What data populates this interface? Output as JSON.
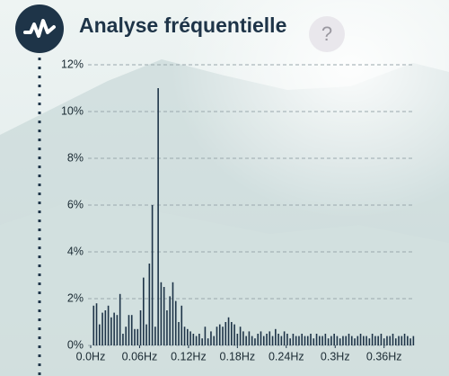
{
  "ui": {
    "help": "?"
  },
  "chart_data": {
    "type": "bar",
    "title": "Analyse fréquentielle",
    "color": "#1e3448",
    "grid": true,
    "x": [
      0.0036,
      0.0072,
      0.0108,
      0.0144,
      0.018,
      0.0216,
      0.0252,
      0.0288,
      0.0324,
      0.036,
      0.0396,
      0.0432,
      0.0468,
      0.0504,
      0.054,
      0.0576,
      0.0612,
      0.0648,
      0.0684,
      0.072,
      0.0756,
      0.0792,
      0.0828,
      0.0864,
      0.09,
      0.0936,
      0.0972,
      0.1008,
      0.1044,
      0.108,
      0.1116,
      0.1152,
      0.1188,
      0.1224,
      0.126,
      0.1296,
      0.1332,
      0.1368,
      0.1404,
      0.144,
      0.1476,
      0.1512,
      0.1548,
      0.1584,
      0.162,
      0.1656,
      0.1692,
      0.1728,
      0.1764,
      0.18,
      0.1836,
      0.1872,
      0.1908,
      0.1944,
      0.198,
      0.2016,
      0.2052,
      0.2088,
      0.2124,
      0.216,
      0.2196,
      0.2232,
      0.2268,
      0.2304,
      0.234,
      0.2376,
      0.2412,
      0.2448,
      0.2484,
      0.252,
      0.2556,
      0.2592,
      0.2628,
      0.2664,
      0.27,
      0.2736,
      0.2772,
      0.2808,
      0.2844,
      0.288,
      0.2916,
      0.2952,
      0.2988,
      0.3024,
      0.306,
      0.3096,
      0.3132,
      0.3168,
      0.3204,
      0.324,
      0.3276,
      0.3312,
      0.3348,
      0.3384,
      0.342,
      0.3456,
      0.3492,
      0.3528,
      0.3564,
      0.36,
      0.3636,
      0.3672,
      0.3708,
      0.3744,
      0.378,
      0.3816,
      0.3852,
      0.3888,
      0.3924,
      0.396
    ],
    "values": [
      1.7,
      1.8,
      0.9,
      1.4,
      1.5,
      1.7,
      1.2,
      1.4,
      1.3,
      2.2,
      0.5,
      0.8,
      1.3,
      1.3,
      0.7,
      0.7,
      1.5,
      2.9,
      0.9,
      3.5,
      6.0,
      0.8,
      11.0,
      2.7,
      2.5,
      1.5,
      2.1,
      2.7,
      1.9,
      1.0,
      1.7,
      0.8,
      0.7,
      0.6,
      0.5,
      0.4,
      0.5,
      0.3,
      0.8,
      0.3,
      0.6,
      0.4,
      0.8,
      0.9,
      0.8,
      1.0,
      1.2,
      1.0,
      0.9,
      0.5,
      0.8,
      0.6,
      0.4,
      0.6,
      0.4,
      0.3,
      0.5,
      0.6,
      0.4,
      0.5,
      0.6,
      0.4,
      0.7,
      0.5,
      0.4,
      0.6,
      0.5,
      0.3,
      0.5,
      0.4,
      0.4,
      0.5,
      0.4,
      0.4,
      0.5,
      0.3,
      0.5,
      0.4,
      0.4,
      0.5,
      0.3,
      0.4,
      0.5,
      0.4,
      0.3,
      0.4,
      0.4,
      0.5,
      0.4,
      0.3,
      0.4,
      0.5,
      0.4,
      0.4,
      0.3,
      0.5,
      0.4,
      0.4,
      0.5,
      0.3,
      0.4,
      0.4,
      0.5,
      0.3,
      0.4,
      0.4,
      0.5,
      0.4,
      0.3,
      0.4
    ],
    "xlim": [
      0,
      0.4
    ],
    "xticks": [
      {
        "value": 0,
        "label": "0.0Hz"
      },
      {
        "value": 0.06,
        "label": "0.06Hz"
      },
      {
        "value": 0.12,
        "label": "0.12Hz"
      },
      {
        "value": 0.18,
        "label": "0.18Hz"
      },
      {
        "value": 0.24,
        "label": "0.24Hz"
      },
      {
        "value": 0.3,
        "label": "0.3Hz"
      },
      {
        "value": 0.36,
        "label": "0.36Hz"
      }
    ],
    "ylim": [
      0,
      12
    ],
    "yticks": [
      {
        "value": 0,
        "label": "0%"
      },
      {
        "value": 2,
        "label": "2%"
      },
      {
        "value": 4,
        "label": "4%"
      },
      {
        "value": 6,
        "label": "6%"
      },
      {
        "value": 8,
        "label": "8%"
      },
      {
        "value": 10,
        "label": "10%"
      },
      {
        "value": 12,
        "label": "12%"
      }
    ]
  }
}
